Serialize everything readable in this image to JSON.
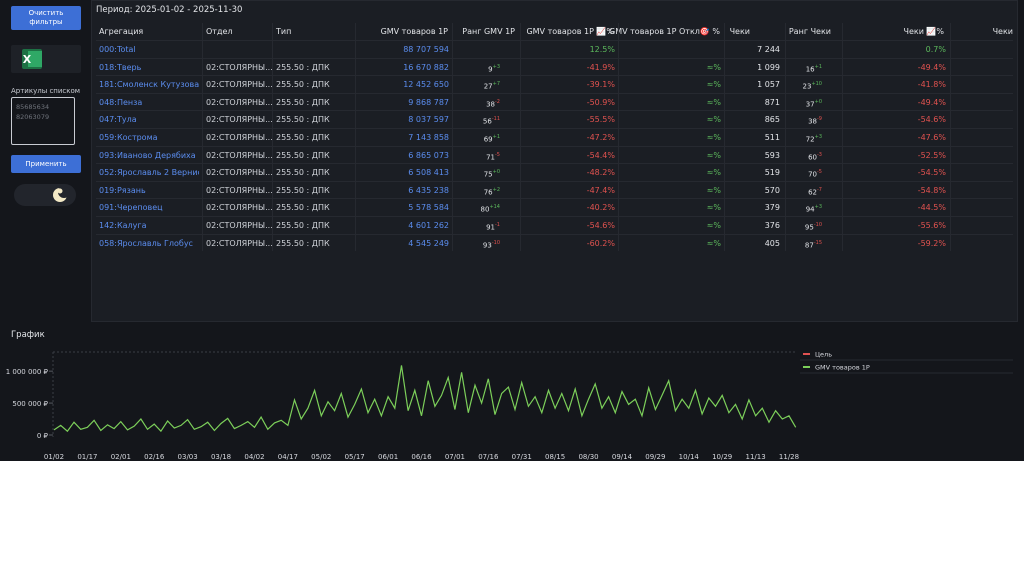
{
  "sidebar": {
    "clear_button": "Очистить фильтры",
    "list_label": "Артикулы списком",
    "placeholder_lines": [
      "85685634",
      "82063079"
    ],
    "apply_button": "Применить"
  },
  "period": "Период: 2025-01-02 - 2025-11-30",
  "table": {
    "columns": [
      "Агрегация",
      "Отдел",
      "Тип",
      "GMV товаров 1P",
      "Ранг GMV 1P",
      "GMV товаров 1P 📈%",
      "GMV товаров 1P Откл🎯 %",
      "Чеки",
      "Ранг Чеки",
      "Чеки 📈%",
      "Чеки"
    ],
    "rows": [
      [
        "000:Total",
        null,
        null,
        "88 707 594",
        null,
        null,
        "12.5%",
        null,
        "7 244",
        null,
        null,
        "0.7%"
      ],
      [
        "018:Тверь",
        "02:СТОЛЯРНЫ...",
        "255.50 : ДПК",
        "16 670 882",
        "9",
        "+3",
        "-41.9%",
        "≈%",
        "1 099",
        "16",
        "+1",
        "-49.4%"
      ],
      [
        "181:Смоленск Кутузова",
        "02:СТОЛЯРНЫ...",
        "255.50 : ДПК",
        "12 452 650",
        "27",
        "+7",
        "-39.1%",
        "≈%",
        "1 057",
        "23",
        "+10",
        "-41.8%"
      ],
      [
        "048:Пенза",
        "02:СТОЛЯРНЫ...",
        "255.50 : ДПК",
        "9 868 787",
        "38",
        "-2",
        "-50.9%",
        "≈%",
        "871",
        "37",
        "+0",
        "-49.4%"
      ],
      [
        "047:Тула",
        "02:СТОЛЯРНЫ...",
        "255.50 : ДПК",
        "8 037 597",
        "56",
        "-11",
        "-55.5%",
        "≈%",
        "865",
        "38",
        "-9",
        "-54.6%"
      ],
      [
        "059:Кострома",
        "02:СТОЛЯРНЫ...",
        "255.50 : ДПК",
        "7 143 858",
        "69",
        "+1",
        "-47.2%",
        "≈%",
        "511",
        "72",
        "+3",
        "-47.6%"
      ],
      [
        "093:Иваново Дерябиха",
        "02:СТОЛЯРНЫ...",
        "255.50 : ДПК",
        "6 865 073",
        "71",
        "-5",
        "-54.4%",
        "≈%",
        "593",
        "60",
        "-3",
        "-52.5%"
      ],
      [
        "052:Ярославль 2 Вернис...",
        "02:СТОЛЯРНЫ...",
        "255.50 : ДПК",
        "6 508 413",
        "75",
        "+0",
        "-48.2%",
        "≈%",
        "519",
        "70",
        "-5",
        "-54.5%"
      ],
      [
        "019:Рязань",
        "02:СТОЛЯРНЫ...",
        "255.50 : ДПК",
        "6 435 238",
        "76",
        "+2",
        "-47.4%",
        "≈%",
        "570",
        "62",
        "-7",
        "-54.8%"
      ],
      [
        "091:Череповец",
        "02:СТОЛЯРНЫ...",
        "255.50 : ДПК",
        "5 578 584",
        "80",
        "+14",
        "-40.2%",
        "≈%",
        "379",
        "94",
        "+3",
        "-44.5%"
      ],
      [
        "142:Калуга",
        "02:СТОЛЯРНЫ...",
        "255.50 : ДПК",
        "4 601 262",
        "91",
        "-1",
        "-54.6%",
        "≈%",
        "376",
        "95",
        "-10",
        "-55.6%"
      ],
      [
        "058:Ярославль Глобус",
        "02:СТОЛЯРНЫ...",
        "255.50 : ДПК",
        "4 545 249",
        "93",
        "-10",
        "-60.2%",
        "≈%",
        "405",
        "87",
        "-15",
        "-59.2%"
      ]
    ]
  },
  "chart_data": {
    "type": "line",
    "title": "График",
    "x": [
      "01/02",
      null,
      null,
      null,
      null,
      "01/17",
      null,
      null,
      null,
      null,
      "02/01",
      null,
      null,
      null,
      null,
      "02/16",
      null,
      null,
      null,
      null,
      "03/03",
      null,
      null,
      null,
      null,
      "03/18",
      null,
      null,
      null,
      null,
      "04/02",
      null,
      null,
      null,
      null,
      "04/17",
      null,
      null,
      null,
      null,
      "05/02",
      null,
      null,
      null,
      null,
      "05/17",
      null,
      null,
      null,
      null,
      "06/01",
      null,
      null,
      null,
      null,
      "06/16",
      null,
      null,
      null,
      null,
      "07/01",
      null,
      null,
      null,
      null,
      "07/16",
      null,
      null,
      null,
      null,
      "07/31",
      null,
      null,
      null,
      null,
      "08/15",
      null,
      null,
      null,
      null,
      "08/30",
      null,
      null,
      null,
      null,
      "09/14",
      null,
      null,
      null,
      null,
      "09/29",
      null,
      null,
      null,
      null,
      "10/14",
      null,
      null,
      null,
      null,
      "10/29",
      null,
      null,
      null,
      null,
      "11/13",
      null,
      null,
      null,
      null,
      "11/28",
      null
    ],
    "ylim": [
      0,
      1300000
    ],
    "yticks": [
      {
        "value": 0,
        "label": "0 ₽"
      },
      {
        "value": 500000,
        "label": "500 000 ₽"
      },
      {
        "value": 1000000,
        "label": "1 000 000 ₽"
      }
    ],
    "grid": false,
    "legend": "right",
    "series": [
      {
        "name": "Цель",
        "color": "#e05252",
        "values": [
          null,
          null,
          null,
          null,
          null,
          null,
          null,
          null,
          null,
          null,
          null,
          null,
          null,
          null,
          null,
          null,
          null,
          null,
          null,
          null,
          null,
          null,
          null,
          null,
          null,
          null,
          null,
          null,
          null,
          null,
          null,
          null,
          null,
          null,
          null,
          null,
          null,
          null,
          null,
          null,
          null,
          null,
          null,
          null,
          null,
          null,
          null,
          null,
          null,
          null,
          null,
          null,
          null,
          null,
          null,
          null,
          null,
          null,
          null,
          null,
          null,
          null,
          null,
          null,
          null,
          null,
          null,
          null,
          null,
          null,
          null,
          null,
          null,
          null,
          null,
          null,
          null,
          null,
          null,
          null,
          null,
          null,
          null,
          null,
          null,
          null,
          null,
          null,
          null,
          null,
          null,
          null,
          null,
          null,
          null,
          null,
          null,
          null,
          null,
          null,
          null,
          null,
          null,
          null,
          null,
          null,
          null,
          null,
          null,
          null,
          null,
          null
        ]
      },
      {
        "name": "GMV товаров 1P",
        "color": "#7ccf5a",
        "values": [
          80000,
          150000,
          60000,
          200000,
          90000,
          120000,
          230000,
          70000,
          160000,
          100000,
          210000,
          80000,
          140000,
          250000,
          90000,
          170000,
          60000,
          220000,
          110000,
          150000,
          240000,
          90000,
          130000,
          200000,
          70000,
          180000,
          260000,
          100000,
          150000,
          210000,
          120000,
          280000,
          90000,
          190000,
          230000,
          150000,
          550000,
          250000,
          420000,
          700000,
          300000,
          520000,
          380000,
          650000,
          280000,
          480000,
          720000,
          350000,
          560000,
          300000,
          600000,
          420000,
          1090000,
          380000,
          700000,
          300000,
          850000,
          450000,
          620000,
          900000,
          400000,
          980000,
          350000,
          780000,
          500000,
          880000,
          320000,
          650000,
          750000,
          400000,
          820000,
          450000,
          600000,
          350000,
          700000,
          420000,
          650000,
          380000,
          720000,
          300000,
          560000,
          800000,
          420000,
          600000,
          350000,
          680000,
          480000,
          560000,
          300000,
          740000,
          400000,
          620000,
          850000,
          380000,
          560000,
          420000,
          700000,
          330000,
          580000,
          450000,
          620000,
          350000,
          480000,
          250000,
          550000,
          300000,
          420000,
          200000,
          380000,
          250000,
          300000,
          120000
        ]
      }
    ]
  }
}
